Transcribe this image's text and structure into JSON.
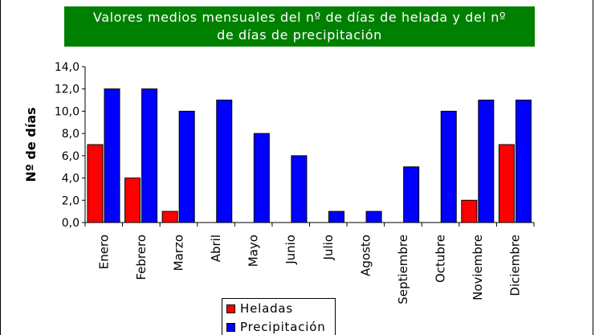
{
  "title_line1": "Valores medios mensuales del nº de días de helada y del nº",
  "title_line2": "de días de precipitación",
  "chart_data": {
    "type": "bar",
    "title": "Valores medios mensuales del nº de días de helada y del nº de días de precipitación",
    "xlabel": "",
    "ylabel": "Nº de días",
    "ylim": [
      0,
      14
    ],
    "yticks": [
      "0,0",
      "2,0",
      "4,0",
      "6,0",
      "8,0",
      "10,0",
      "12,0",
      "14,0"
    ],
    "categories": [
      "Enero",
      "Febrero",
      "Marzo",
      "Abril",
      "Mayo",
      "Junio",
      "Julio",
      "Agosto",
      "Septiembre",
      "Octubre",
      "Noviembre",
      "Diciembre"
    ],
    "series": [
      {
        "name": "Heladas",
        "color": "#ff0000",
        "values": [
          7,
          4,
          1,
          0,
          0,
          0,
          0,
          0,
          0,
          0,
          2,
          7
        ]
      },
      {
        "name": "Precipitación",
        "color": "#0000ff",
        "values": [
          12,
          12,
          10,
          11,
          8,
          6,
          1,
          1,
          5,
          10,
          11,
          11
        ]
      }
    ],
    "grid": false,
    "legend": "bottom"
  }
}
